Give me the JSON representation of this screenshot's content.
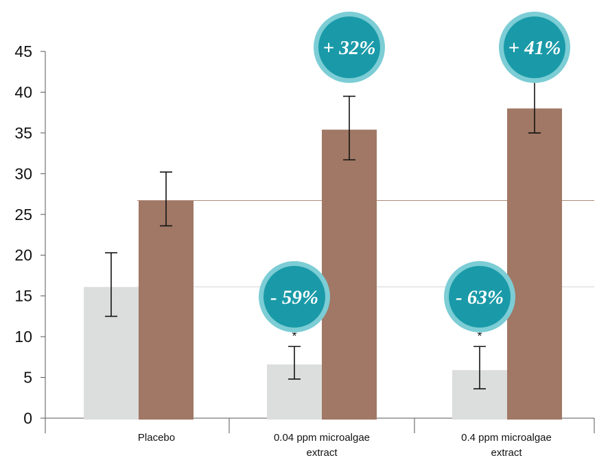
{
  "chart_data": {
    "type": "bar",
    "title": "",
    "xlabel": "",
    "ylabel": "",
    "ylim": [
      0,
      45
    ],
    "yticks": [
      0,
      5,
      10,
      15,
      20,
      25,
      30,
      35,
      40,
      45
    ],
    "grid": false,
    "legend": "none",
    "categories": [
      "Placebo",
      "0.04 ppm microalgae extract",
      "0.4 ppm microalgae extract"
    ],
    "category_lines": [
      [
        "Placebo"
      ],
      [
        "0.04 ppm microalgae",
        "extract"
      ],
      [
        "0.4 ppm microalgae",
        "extract"
      ]
    ],
    "series": [
      {
        "color": "#dcdedd",
        "values": [
          16.1,
          6.6,
          5.9
        ],
        "error_low": [
          12.5,
          4.8,
          3.6
        ],
        "error_high": [
          20.3,
          8.8,
          8.8
        ],
        "significance": [
          "",
          "*",
          "*"
        ],
        "badges": [
          "",
          "- 59%",
          "- 63%"
        ]
      },
      {
        "color": "#a07865",
        "values": [
          26.7,
          35.4,
          38.0
        ],
        "error_low": [
          23.6,
          31.7,
          35.0
        ],
        "error_high": [
          30.2,
          39.5,
          41.3
        ],
        "significance": [
          "",
          "",
          ""
        ],
        "badges": [
          "",
          "+ 32%",
          "+ 41%"
        ]
      }
    ],
    "reference_lines": [
      {
        "value": 26.7,
        "color": "#a07865"
      },
      {
        "value": 16.1,
        "color": "#c8c8c8"
      }
    ],
    "badge_colors": {
      "fill": "#1a9aa8",
      "ring": "#7ccdd5"
    }
  }
}
